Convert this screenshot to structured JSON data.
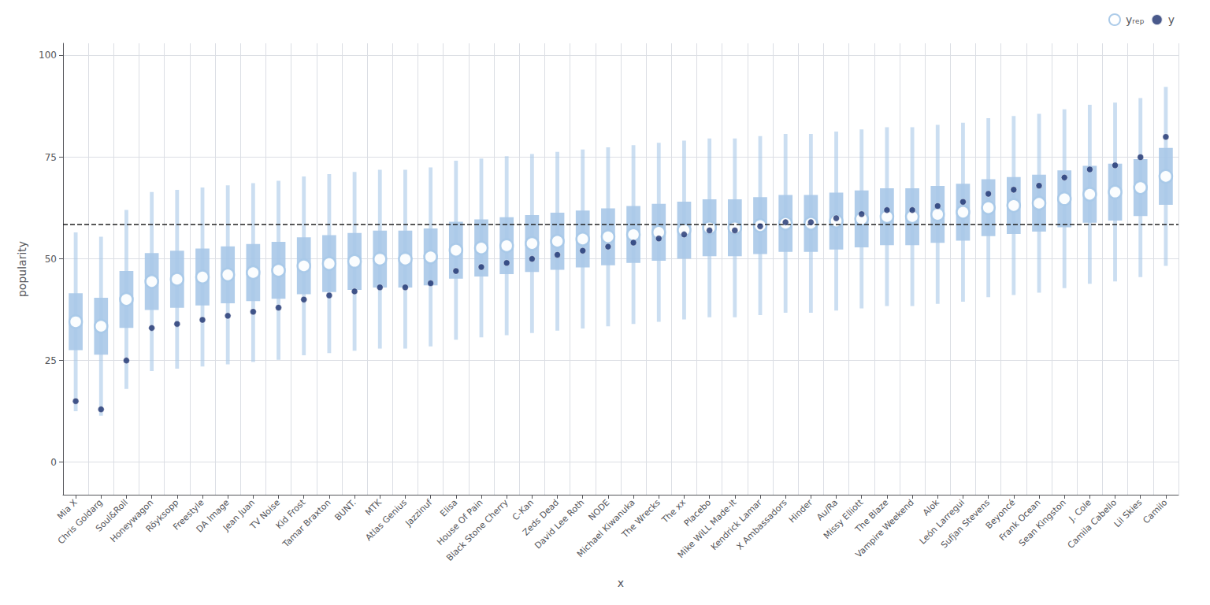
{
  "chart_data": {
    "type": "interval",
    "xlabel": "x",
    "ylabel": "popularity",
    "categories": [
      "Mia X",
      "Chris Goldarg",
      "Soul&Roll",
      "Honeywagon",
      "Röyksopp",
      "Freestyle",
      "DA Image",
      "Jean Juan",
      "TV Noise",
      "Kid Frost",
      "Tamar Braxton",
      "BUNT.",
      "MTK",
      "Atlas Genius",
      "Jazzinuf",
      "Elisa",
      "House Of Pain",
      "Black Stone Cherry",
      "C-Kan",
      "Zeds Dead",
      "David Lee Roth",
      "NODE",
      "Michael Kiwanuka",
      "The Wrecks",
      "The xx",
      "Placebo",
      "Mike WiLL Made-It",
      "Kendrick Lamar",
      "X Ambassadors",
      "Hinder",
      "Au/Ra",
      "Missy Elliott",
      "The Blaze",
      "Vampire Weekend",
      "Alok",
      "León Larregui",
      "Sufjan Stevens",
      "Beyoncé",
      "Frank Ocean",
      "Sean Kingston",
      "J. Cole",
      "Camila Cabello",
      "Lil Skies",
      "Camilo"
    ],
    "series": [
      {
        "name": "yᵣₑₚ",
        "color": "#a8c8e8",
        "marker": "ring",
        "values": [
          34.53,
          33.43,
          40.03,
          44.43,
          44.98,
          45.53,
          46.08,
          46.63,
          47.18,
          48.28,
          48.83,
          49.38,
          49.93,
          49.93,
          50.48,
          52.13,
          52.68,
          53.23,
          53.78,
          54.33,
          54.88,
          55.43,
          55.98,
          56.53,
          57.08,
          57.63,
          57.63,
          58.18,
          58.73,
          58.73,
          59.28,
          59.83,
          60.38,
          60.38,
          60.93,
          61.48,
          62.58,
          63.13,
          63.68,
          64.78,
          65.88,
          66.43,
          67.53,
          70.28
        ],
        "interval_95_low": [
          12.53,
          11.43,
          18.03,
          22.43,
          22.98,
          23.53,
          24.08,
          24.63,
          25.18,
          26.28,
          26.83,
          27.38,
          27.93,
          27.93,
          28.48,
          30.13,
          30.68,
          31.23,
          31.78,
          32.33,
          32.88,
          33.43,
          33.98,
          34.53,
          35.08,
          35.63,
          35.63,
          36.18,
          36.73,
          36.73,
          37.28,
          37.83,
          38.38,
          38.38,
          38.93,
          39.48,
          40.58,
          41.13,
          41.68,
          42.78,
          43.88,
          44.43,
          45.53,
          48.28
        ],
        "interval_95_high": [
          56.53,
          55.43,
          62.03,
          66.43,
          66.98,
          67.53,
          68.08,
          68.63,
          69.18,
          70.28,
          70.83,
          71.38,
          71.93,
          71.93,
          72.48,
          74.13,
          74.68,
          75.23,
          75.78,
          76.33,
          76.88,
          77.43,
          77.98,
          78.53,
          79.08,
          79.63,
          79.63,
          80.18,
          80.73,
          80.73,
          81.28,
          81.83,
          82.38,
          82.38,
          82.93,
          83.48,
          84.58,
          85.13,
          85.68,
          86.78,
          87.88,
          88.43,
          89.53,
          92.28
        ],
        "interval_50_low": [
          27.53,
          26.43,
          33.03,
          37.43,
          37.98,
          38.53,
          39.08,
          39.63,
          40.18,
          41.28,
          41.83,
          42.38,
          42.93,
          42.93,
          43.48,
          45.13,
          45.68,
          46.23,
          46.78,
          47.33,
          47.88,
          48.43,
          48.98,
          49.53,
          50.08,
          50.63,
          50.63,
          51.18,
          51.73,
          51.73,
          52.28,
          52.83,
          53.38,
          53.38,
          53.93,
          54.48,
          55.58,
          56.13,
          56.68,
          57.78,
          58.88,
          59.43,
          60.53,
          63.28
        ],
        "interval_50_high": [
          41.53,
          40.43,
          47.03,
          51.43,
          51.98,
          52.53,
          53.08,
          53.63,
          54.18,
          55.28,
          55.83,
          56.38,
          56.93,
          56.93,
          57.48,
          59.13,
          59.68,
          60.23,
          60.78,
          61.33,
          61.88,
          62.43,
          62.98,
          63.53,
          64.08,
          64.63,
          64.63,
          65.18,
          65.73,
          65.73,
          66.28,
          66.83,
          67.38,
          67.38,
          67.93,
          68.48,
          69.58,
          70.13,
          70.68,
          71.78,
          72.88,
          73.43,
          74.53,
          77.28
        ]
      },
      {
        "name": "y",
        "color": "#1b2f6e",
        "marker": "circle",
        "values": [
          15,
          13,
          25,
          33,
          34,
          35,
          36,
          37,
          38,
          40,
          41,
          42,
          43,
          43,
          44,
          47,
          48,
          49,
          50,
          51,
          52,
          53,
          54,
          55,
          56,
          57,
          57,
          58,
          59,
          59,
          60,
          61,
          62,
          62,
          63,
          64,
          66,
          67,
          68,
          70,
          72,
          73,
          75,
          80
        ]
      }
    ],
    "reference_line": {
      "y": 58.4,
      "color": "#222222",
      "line_style": "dashed"
    },
    "ylim": [
      -8,
      103
    ],
    "yticks": [
      0,
      25,
      50,
      75,
      100
    ],
    "grid": true,
    "legend": "upper right"
  }
}
